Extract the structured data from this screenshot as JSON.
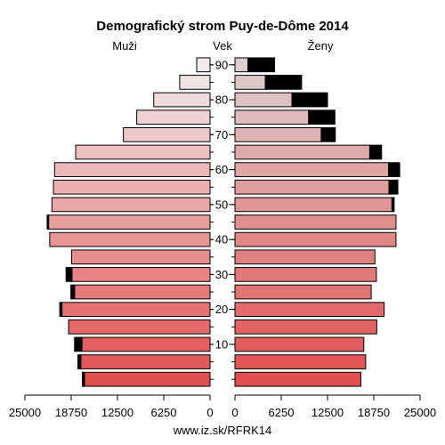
{
  "chart_data": {
    "type": "bar",
    "subtype": "population-pyramid",
    "title": "Demografický strom Puy-de-Dôme 2014",
    "left_label": "Muži",
    "center_label": "Vek",
    "right_label": "Ženy",
    "footer": "www.iz.sk/RFRK14",
    "age_groups": [
      "0-4",
      "5-9",
      "10-14",
      "15-19",
      "20-24",
      "25-29",
      "30-34",
      "35-39",
      "40-44",
      "45-49",
      "50-54",
      "55-59",
      "60-64",
      "65-69",
      "70-74",
      "75-79",
      "80-84",
      "85-89",
      "90+"
    ],
    "age_tick_labels": [
      "10",
      "20",
      "30",
      "40",
      "50",
      "60",
      "70",
      "80",
      "90"
    ],
    "age_tick_positions": [
      10,
      20,
      30,
      40,
      50,
      60,
      70,
      80,
      90
    ],
    "x_tick_labels_left": [
      "25000",
      "18750",
      "12500",
      "6250",
      "0"
    ],
    "x_tick_labels_right": [
      "0",
      "6250",
      "12500",
      "18750",
      "25000"
    ],
    "xlim": [
      0,
      25000
    ],
    "series": [
      {
        "name": "Muži",
        "values": [
          16950,
          17450,
          17300,
          19100,
          20000,
          18300,
          18650,
          18700,
          21650,
          21800,
          21350,
          21150,
          21000,
          18150,
          11700,
          9900,
          7600,
          4100,
          1800
        ],
        "excess": [
          300,
          400,
          1000,
          0,
          300,
          500,
          800,
          0,
          0,
          200,
          0,
          0,
          0,
          0,
          0,
          0,
          0,
          0,
          0
        ]
      },
      {
        "name": "Ženy",
        "values": [
          17000,
          17650,
          17400,
          19150,
          20150,
          18400,
          19100,
          18900,
          21750,
          21750,
          21500,
          22000,
          22250,
          19800,
          13550,
          13500,
          12500,
          9000,
          5350
        ],
        "excess": [
          0,
          0,
          0,
          0,
          0,
          0,
          0,
          0,
          0,
          0,
          300,
          1200,
          1500,
          1600,
          1900,
          3550,
          4800,
          4900,
          3600
        ]
      }
    ]
  }
}
